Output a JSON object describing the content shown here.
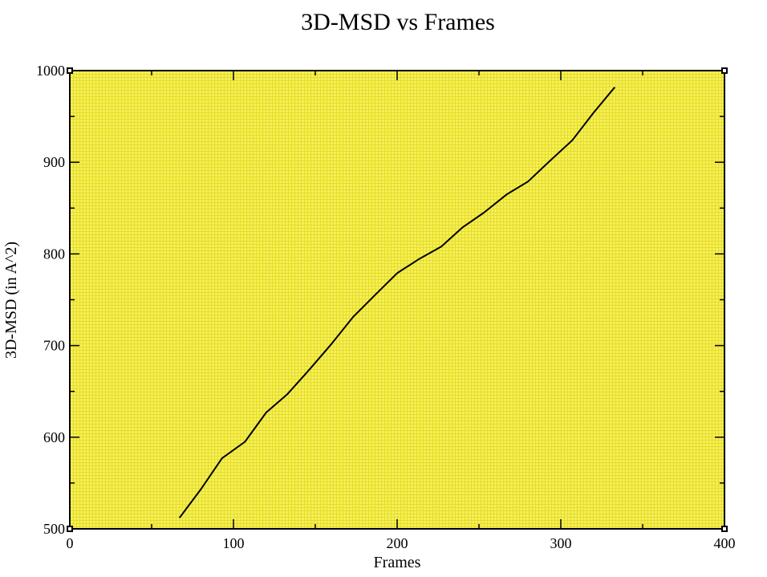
{
  "chart_data": {
    "type": "line",
    "title": "3D-MSD vs Frames",
    "xlabel": "Frames",
    "ylabel": "3D-MSD (in A^2)",
    "xlim": [
      0,
      400
    ],
    "ylim": [
      500,
      1000
    ],
    "x_major_ticks": [
      0,
      100,
      200,
      300,
      400
    ],
    "x_minor_ticks": [
      50,
      150,
      250,
      350
    ],
    "y_major_ticks": [
      500,
      600,
      700,
      800,
      900,
      1000
    ],
    "y_minor_ticks": [
      550,
      650,
      750,
      850,
      950
    ],
    "grid": true,
    "legend": "none",
    "colors": {
      "plot_background": "#f5f05a",
      "grid_line": "#e6dc28",
      "frame": "#000000",
      "series_line": "#000000"
    },
    "series": [
      {
        "x": [
          67,
          80,
          93,
          107,
          120,
          133,
          147,
          160,
          173,
          187,
          200,
          213,
          227,
          240,
          253,
          267,
          280,
          293,
          307,
          320,
          333
        ],
        "values": [
          512,
          543,
          577,
          595,
          627,
          647,
          675,
          702,
          731,
          756,
          779,
          794,
          808,
          829,
          845,
          865,
          879,
          901,
          924,
          954,
          982
        ]
      }
    ]
  }
}
